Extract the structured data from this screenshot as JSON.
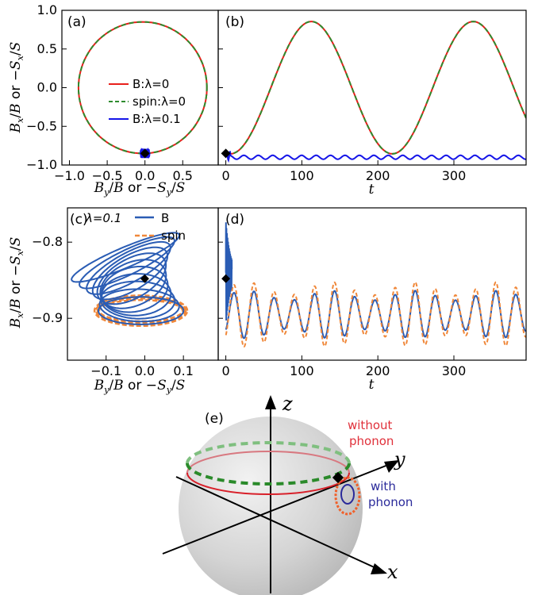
{
  "chart_data": [
    {
      "panel": "(a)",
      "type": "line",
      "xlabel": "B_y/B or −S_y/S",
      "ylabel": "B_x/B or −S_x/S",
      "xlim": [
        -1.1,
        0.97
      ],
      "ylim": [
        -1.0,
        1.0
      ],
      "xticks": [
        "−1.0",
        "−0.5",
        "0.0",
        "0.5"
      ],
      "yticks": [
        "1.0",
        "0.5",
        "0.0",
        "−0.5",
        "−1.0"
      ],
      "legend": {
        "placement": "center",
        "entries": [
          "B:λ=0",
          "spin:λ=0",
          "B:λ=0.1"
        ]
      },
      "series": [
        {
          "name": "B:λ=0",
          "color": "#e8201b",
          "style": "solid",
          "shape": "circle",
          "center": [
            -0.03,
            0.0
          ],
          "radius": 0.85
        },
        {
          "name": "spin:λ=0",
          "color": "#2e8b2e",
          "style": "dashed",
          "shape": "circle",
          "center": [
            -0.03,
            0.0
          ],
          "radius": 0.85
        },
        {
          "name": "B:λ=0.1",
          "color": "#1515e8",
          "style": "solid",
          "shape": "cluster",
          "center": [
            0.0,
            -0.85
          ],
          "spread": [
            0.06,
            0.05
          ]
        }
      ],
      "marker": {
        "x": 0.0,
        "y": -0.85,
        "shape": "diamond",
        "color": "#000000"
      }
    },
    {
      "panel": "(b)",
      "type": "line",
      "xlabel": "t",
      "ylabel": "",
      "xlim": [
        -10,
        395
      ],
      "ylim": [
        -1.0,
        1.0
      ],
      "xticks": [
        "0",
        "100",
        "200",
        "300"
      ],
      "series": [
        {
          "name": "B:λ=0",
          "color": "#e8201b",
          "style": "solid",
          "amplitude": 0.855,
          "period": 213,
          "mean": 0.0,
          "phase": 1
        },
        {
          "name": "spin:λ=0",
          "color": "#2e8b2e",
          "style": "dashed",
          "amplitude": 0.855,
          "period": 213,
          "mean": 0.0,
          "phase": 1
        },
        {
          "name": "B:λ=0.1",
          "color": "#1515e8",
          "style": "solid",
          "amplitude": 0.025,
          "period": 19,
          "mean": -0.9,
          "spike": [
            -0.88,
            -0.82
          ]
        }
      ],
      "marker": {
        "x": 0,
        "y": -0.85,
        "shape": "diamond",
        "color": "#000000"
      }
    },
    {
      "panel": "(c)",
      "type": "line",
      "xlabel": "B_y/B or −S_y/S",
      "ylabel": "B_x/B or −S_x/S",
      "xlim": [
        -0.2,
        0.19
      ],
      "ylim": [
        -0.955,
        -0.755
      ],
      "xticks": [
        "−0.1",
        "0.0",
        "0.1"
      ],
      "yticks": [
        "−0.8",
        "−0.9"
      ],
      "annotation": "λ=0.1",
      "legend": {
        "placement": "top-right",
        "entries": [
          "B",
          "spin"
        ]
      },
      "series": [
        {
          "name": "B",
          "color": "#2a5cb4",
          "style": "solid",
          "shape": "precessing ellipses",
          "center": [
            -0.01,
            -0.88
          ]
        },
        {
          "name": "spin",
          "color": "#f0883a",
          "style": "dashed",
          "shape": "ellipse",
          "center": [
            -0.01,
            -0.89
          ],
          "radius": [
            0.12,
            0.02
          ]
        }
      ],
      "marker": {
        "x": 0.0,
        "y": -0.848,
        "shape": "diamond",
        "color": "#000000"
      }
    },
    {
      "panel": "(d)",
      "type": "line",
      "xlabel": "t",
      "ylabel": "",
      "xlim": [
        -10,
        395
      ],
      "ylim": [
        -0.955,
        -0.755
      ],
      "xticks": [
        "0",
        "100",
        "200",
        "300"
      ],
      "series": [
        {
          "name": "B",
          "color": "#2a5cb4",
          "style": "solid",
          "mean": -0.895,
          "amplitude": 0.025,
          "period": 26.5,
          "spike_range": [
            -0.91,
            -0.77
          ]
        },
        {
          "name": "spin",
          "color": "#f0883a",
          "style": "dashed",
          "mean": -0.895,
          "amplitude": 0.034,
          "period": 26.5
        }
      ],
      "marker": {
        "x": 0,
        "y": -0.848,
        "shape": "diamond",
        "color": "#000000"
      }
    },
    {
      "panel": "(e)",
      "type": "diagram",
      "axes": [
        "z",
        "y",
        "x"
      ],
      "annotations": [
        {
          "text": "without",
          "color": "#e0303a"
        },
        {
          "text": "phonon",
          "color": "#e0303a"
        },
        {
          "text": "with",
          "color": "#2a2a9a"
        },
        {
          "text": "phonon",
          "color": "#2a2a9a"
        }
      ]
    }
  ]
}
